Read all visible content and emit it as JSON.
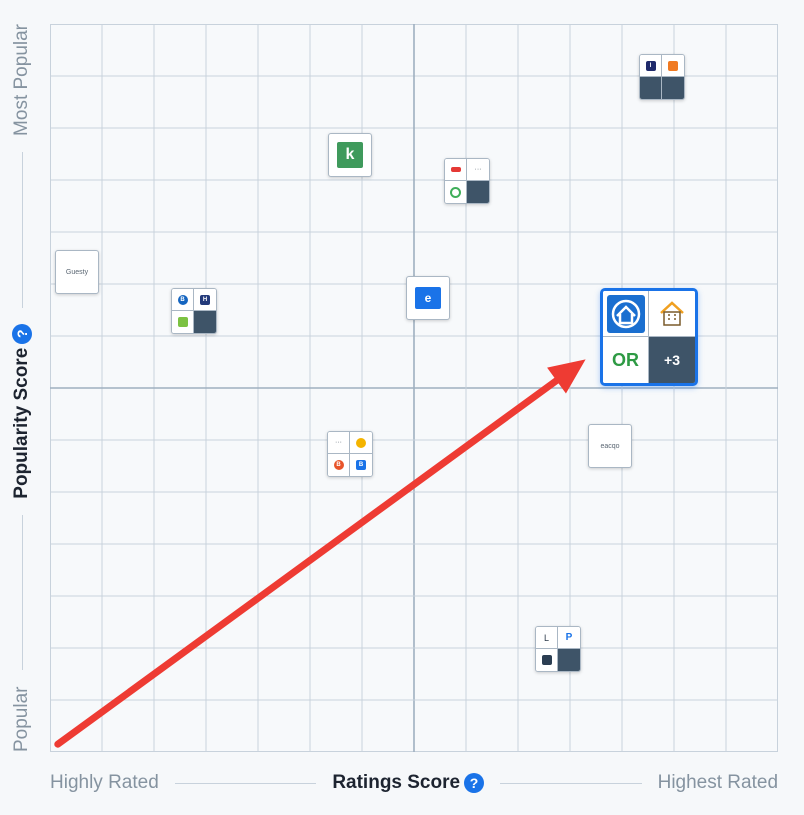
{
  "chart_data": {
    "type": "scatter",
    "title": "",
    "xlabel": "Ratings Score",
    "ylabel": "Popularity Score",
    "x_axis": {
      "low_label": "Highly Rated",
      "title": "Ratings Score",
      "high_label": "Highest Rated"
    },
    "y_axis": {
      "low_label": "Popular",
      "title": "Popularity Score",
      "high_label": "Most Popular"
    },
    "xlim": [
      0,
      14
    ],
    "ylim": [
      0,
      14
    ],
    "grid": true,
    "help_icon": "question-circle-icon",
    "points": [
      {
        "name": "group-top-right",
        "x": 11.75,
        "y": 13.0,
        "kind": "group",
        "cells": [
          "navy",
          "orange",
          "empty",
          "empty"
        ]
      },
      {
        "name": "green-logo",
        "x": 5.75,
        "y": 11.5,
        "kind": "solo",
        "logo": "green-k"
      },
      {
        "name": "group-mid-top",
        "x": 8.0,
        "y": 11.0,
        "kind": "group",
        "cells": [
          "red",
          "text",
          "green-circle",
          "empty"
        ]
      },
      {
        "name": "guesty",
        "x": 0.5,
        "y": 9.25,
        "kind": "solo",
        "text": "Guesty"
      },
      {
        "name": "group-left",
        "x": 2.75,
        "y": 8.5,
        "kind": "group",
        "cells": [
          "blue-round",
          "navy-h",
          "green",
          "empty"
        ]
      },
      {
        "name": "blue-e-logo",
        "x": 7.25,
        "y": 8.75,
        "kind": "solo",
        "logo": "blue-e"
      },
      {
        "name": "highlighted-group",
        "x": 11.5,
        "y": 8.0,
        "kind": "highlight",
        "cells": [
          "blue-house",
          "orange-building",
          "OR",
          "+3"
        ]
      },
      {
        "name": "group-center",
        "x": 5.75,
        "y": 5.75,
        "kind": "group",
        "cells": [
          "text",
          "yellow-circle",
          "orange-circle",
          "blue"
        ]
      },
      {
        "name": "eacqo",
        "x": 10.75,
        "y": 5.9,
        "kind": "solo",
        "text": "eacqo"
      },
      {
        "name": "group-bottom",
        "x": 9.75,
        "y": 2.0,
        "kind": "group",
        "cells": [
          "dark-l",
          "blue-p",
          "dark-square",
          "empty"
        ]
      }
    ],
    "annotation": {
      "type": "arrow",
      "color": "#ee3b33",
      "from": [
        0.15,
        0.15
      ],
      "to": [
        10.3,
        7.55
      ]
    }
  },
  "highlight_more_label": "+3",
  "highlight_or_label": "OR",
  "colors": {
    "grid": "#c8d2dc",
    "highlight": "#1a73e8",
    "arrow": "#ee3b33",
    "empty_cell": "#3e5468"
  }
}
